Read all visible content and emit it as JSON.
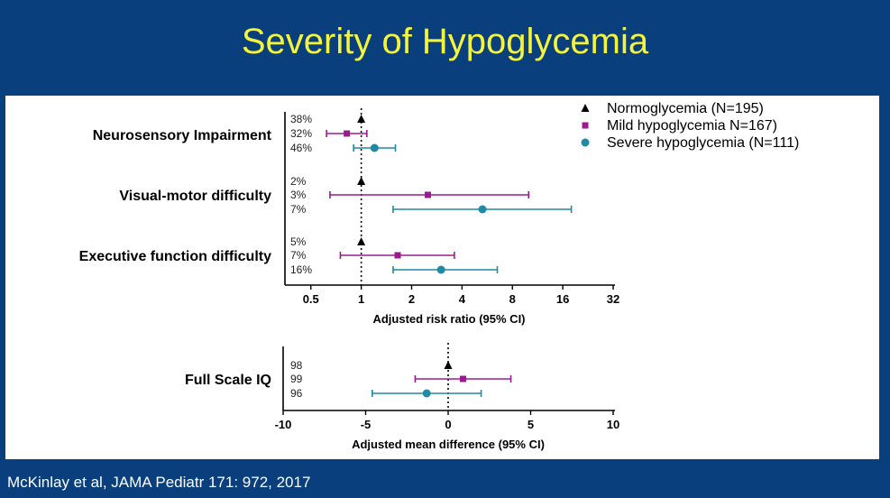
{
  "slide": {
    "title": "Severity of Hypoglycemia",
    "citation": "McKinlay et al, JAMA Pediatr 171: 972, 2017"
  },
  "colors": {
    "background": "#0a3f7e",
    "title": "#f4f43a",
    "normo": "#000000",
    "mild": "#9b1b8f",
    "severe": "#1e8aa3"
  },
  "legend": [
    {
      "label": "Normoglycemia (N=195)",
      "marker": "triangle",
      "color": "#000000"
    },
    {
      "label": "Mild hypoglycemia N=167)",
      "marker": "square",
      "color": "#9b1b8f"
    },
    {
      "label": "Severe hypoglycemia (N=111)",
      "marker": "circle",
      "color": "#1e8aa3"
    }
  ],
  "chart_data": [
    {
      "type": "forest",
      "xscale": "log2",
      "xlim": [
        0.35,
        32
      ],
      "xticks": [
        0.5,
        1,
        2,
        4,
        8,
        16,
        32
      ],
      "xtick_labels": [
        "0.5",
        "1",
        "2",
        "4",
        "8",
        "16",
        "32"
      ],
      "xlabel": "Adjusted risk ratio (95% CI)",
      "reference": 1,
      "outcomes": [
        {
          "label": "Neurosensory Impairment",
          "rows": [
            {
              "group": "Normoglycemia",
              "pct": "38%",
              "est": 1.0,
              "lo": null,
              "hi": null
            },
            {
              "group": "Mild",
              "pct": "32%",
              "est": 0.82,
              "lo": 0.62,
              "hi": 1.08
            },
            {
              "group": "Severe",
              "pct": "46%",
              "est": 1.2,
              "lo": 0.9,
              "hi": 1.6
            }
          ]
        },
        {
          "label": "Visual-motor difficulty",
          "rows": [
            {
              "group": "Normoglycemia",
              "pct": "2%",
              "est": 1.0,
              "lo": null,
              "hi": null
            },
            {
              "group": "Mild",
              "pct": "3%",
              "est": 2.5,
              "lo": 0.65,
              "hi": 10
            },
            {
              "group": "Severe",
              "pct": "7%",
              "est": 5.3,
              "lo": 1.55,
              "hi": 18
            }
          ]
        },
        {
          "label": "Executive function difficulty",
          "rows": [
            {
              "group": "Normoglycemia",
              "pct": "5%",
              "est": 1.0,
              "lo": null,
              "hi": null
            },
            {
              "group": "Mild",
              "pct": "7%",
              "est": 1.65,
              "lo": 0.75,
              "hi": 3.6
            },
            {
              "group": "Severe",
              "pct": "16%",
              "est": 3.0,
              "lo": 1.55,
              "hi": 6.5
            }
          ]
        }
      ]
    },
    {
      "type": "forest",
      "xscale": "linear",
      "xlim": [
        -10,
        10
      ],
      "xticks": [
        -10,
        -5,
        0,
        5,
        10
      ],
      "xtick_labels": [
        "-10",
        "-5",
        "0",
        "5",
        "10"
      ],
      "xlabel": "Adjusted mean difference (95% CI)",
      "reference": 0,
      "outcomes": [
        {
          "label": "Full Scale IQ",
          "rows": [
            {
              "group": "Normoglycemia",
              "pct": "98",
              "est": 0,
              "lo": null,
              "hi": null
            },
            {
              "group": "Mild",
              "pct": "99",
              "est": 0.9,
              "lo": -2.0,
              "hi": 3.8
            },
            {
              "group": "Severe",
              "pct": "96",
              "est": -1.3,
              "lo": -4.6,
              "hi": 2.0
            }
          ]
        }
      ]
    }
  ]
}
